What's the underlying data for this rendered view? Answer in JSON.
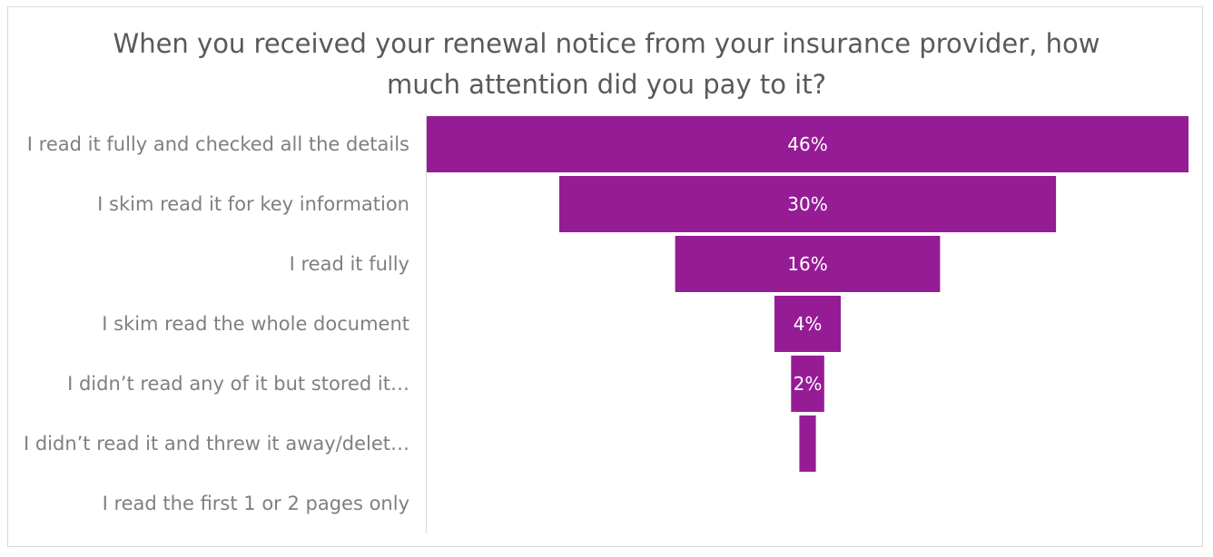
{
  "chart_data": {
    "type": "bar",
    "subtype": "funnel",
    "title_lines": [
      "When you received your renewal notice from your insurance provider, how",
      "much attention did you pay to it?"
    ],
    "categories": [
      "I read it fully and checked all the details",
      "I skim read it for key information",
      "I read it fully",
      "I skim read the whole document",
      "I didn’t read any of it but stored it…",
      "I didn’t read it and threw it away/delet…",
      "I read the first 1 or 2 pages only"
    ],
    "values": [
      46,
      30,
      16,
      4,
      2,
      1,
      0
    ],
    "data_labels": [
      "46%",
      "30%",
      "16%",
      "4%",
      "2%",
      "",
      ""
    ],
    "unit": "%",
    "bar_color": "#961c96",
    "label_color": "#7f7f7f",
    "title_color": "#595959",
    "grid": false,
    "legend": "none"
  }
}
